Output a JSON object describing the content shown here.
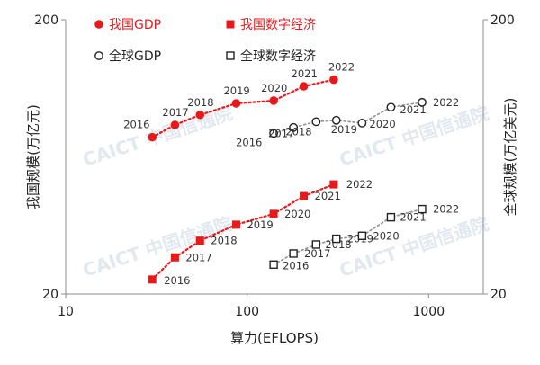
{
  "colors": {
    "china": "#e8191b",
    "global": "#222222",
    "global_line": "#9a9a9a",
    "axis": "#8c8c8c"
  },
  "watermark": "CAICT 中国信通院",
  "chart_data": {
    "type": "scatter",
    "xlabel": "算力(EFLOPS)",
    "ylabel_left": "我国规模(万亿元)",
    "ylabel_right": "全球规模(万亿美元)",
    "x_scale": "log",
    "y_scale": "log",
    "xlim": [
      10,
      2000
    ],
    "ylim": [
      20,
      200
    ],
    "x_ticks": [
      "10",
      "100",
      "1000"
    ],
    "y_ticks_left": [
      "20",
      "200"
    ],
    "y_ticks_right": [
      "20",
      "200"
    ],
    "legend": [
      {
        "label": "我国GDP",
        "marker": "filled-circle",
        "color": "#e8191b"
      },
      {
        "label": "我国数字经济",
        "marker": "filled-square",
        "color": "#e8191b"
      },
      {
        "label": "全球GDP",
        "marker": "open-circle",
        "color": "#222222"
      },
      {
        "label": "全球数字经济",
        "marker": "open-square",
        "color": "#222222"
      }
    ],
    "series": [
      {
        "name": "我国GDP",
        "marker": "filled-circle",
        "labels": [
          "2016",
          "2017",
          "2018",
          "2019",
          "2020",
          "2021",
          "2022"
        ],
        "x": [
          30,
          40,
          55,
          87,
          140,
          205,
          300
        ],
        "y": [
          74.6,
          82.7,
          90.0,
          99.1,
          101.4,
          114.4,
          121.0
        ]
      },
      {
        "name": "我国数字经济",
        "marker": "filled-square",
        "labels": [
          "2016",
          "2017",
          "2018",
          "2019",
          "2020",
          "2021",
          "2022"
        ],
        "x": [
          30,
          40,
          55,
          87,
          140,
          205,
          300
        ],
        "y": [
          22.6,
          27.2,
          31.3,
          35.8,
          39.2,
          45.5,
          50.2
        ]
      },
      {
        "name": "全球GDP",
        "marker": "open-circle",
        "labels": [
          "2016",
          "2017",
          "2018",
          "2019",
          "2020",
          "2021",
          "2022"
        ],
        "x": [
          140,
          180,
          240,
          310,
          430,
          620,
          920
        ],
        "y": [
          77,
          81,
          85,
          86,
          84,
          96,
          100
        ]
      },
      {
        "name": "全球数字经济",
        "marker": "open-square",
        "labels": [
          "2016",
          "2017",
          "2018",
          "2019",
          "2020",
          "2021",
          "2022"
        ],
        "x": [
          140,
          180,
          240,
          310,
          430,
          620,
          920
        ],
        "y": [
          25.6,
          28.1,
          30.3,
          31.8,
          32.6,
          38.1,
          40.8
        ]
      }
    ]
  }
}
